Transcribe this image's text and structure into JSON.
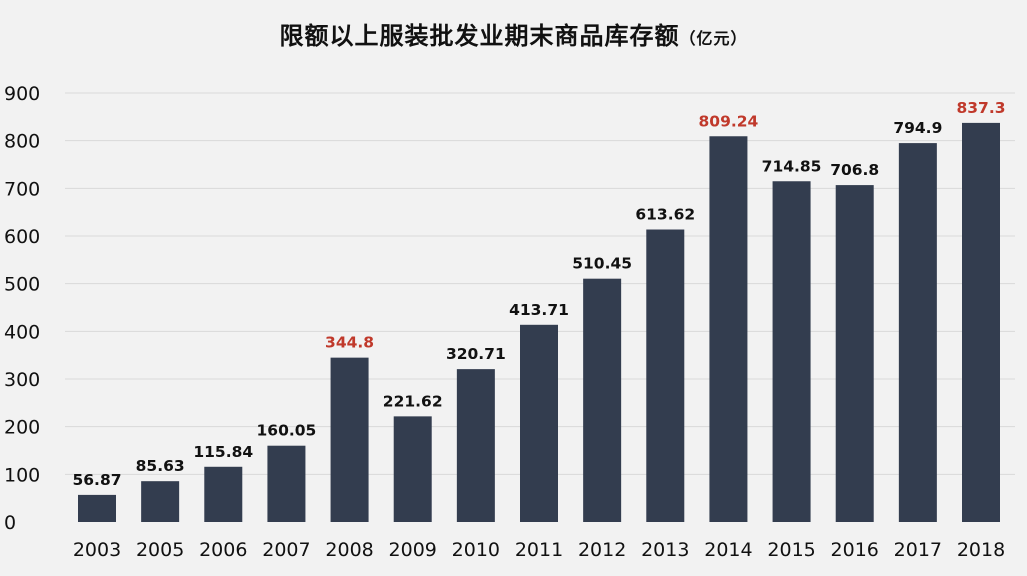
{
  "chart_data": {
    "type": "bar",
    "title": "限额以上服装批发业期末商品库存额",
    "title_unit": "（亿元）",
    "xlabel": "",
    "ylabel": "",
    "ylim": [
      0,
      900
    ],
    "yticks": [
      0,
      100,
      200,
      300,
      400,
      500,
      600,
      700,
      800,
      900
    ],
    "grid": true,
    "categories": [
      "2003",
      "2005",
      "2006",
      "2007",
      "2008",
      "2009",
      "2010",
      "2011",
      "2012",
      "2013",
      "2014",
      "2015",
      "2016",
      "2017",
      "2018"
    ],
    "values": [
      56.87,
      85.63,
      115.84,
      160.05,
      344.8,
      221.62,
      320.71,
      413.71,
      510.45,
      613.62,
      809.24,
      714.85,
      706.8,
      794.9,
      837.3
    ],
    "data_labels": [
      "56.87",
      "85.63",
      "115.84",
      "160.05",
      "344.8",
      "221.62",
      "320.71",
      "413.71",
      "510.45",
      "613.62",
      "809.24",
      "714.85",
      "706.8",
      "794.9",
      "837.3"
    ],
    "highlighted_categories": [
      "2008",
      "2014",
      "2018"
    ],
    "colors": {
      "bar": "#333d4f",
      "label": "#111111",
      "highlight_label": "#c0392b",
      "grid": "#d9d9d9",
      "background": "#f2f2f2"
    }
  }
}
